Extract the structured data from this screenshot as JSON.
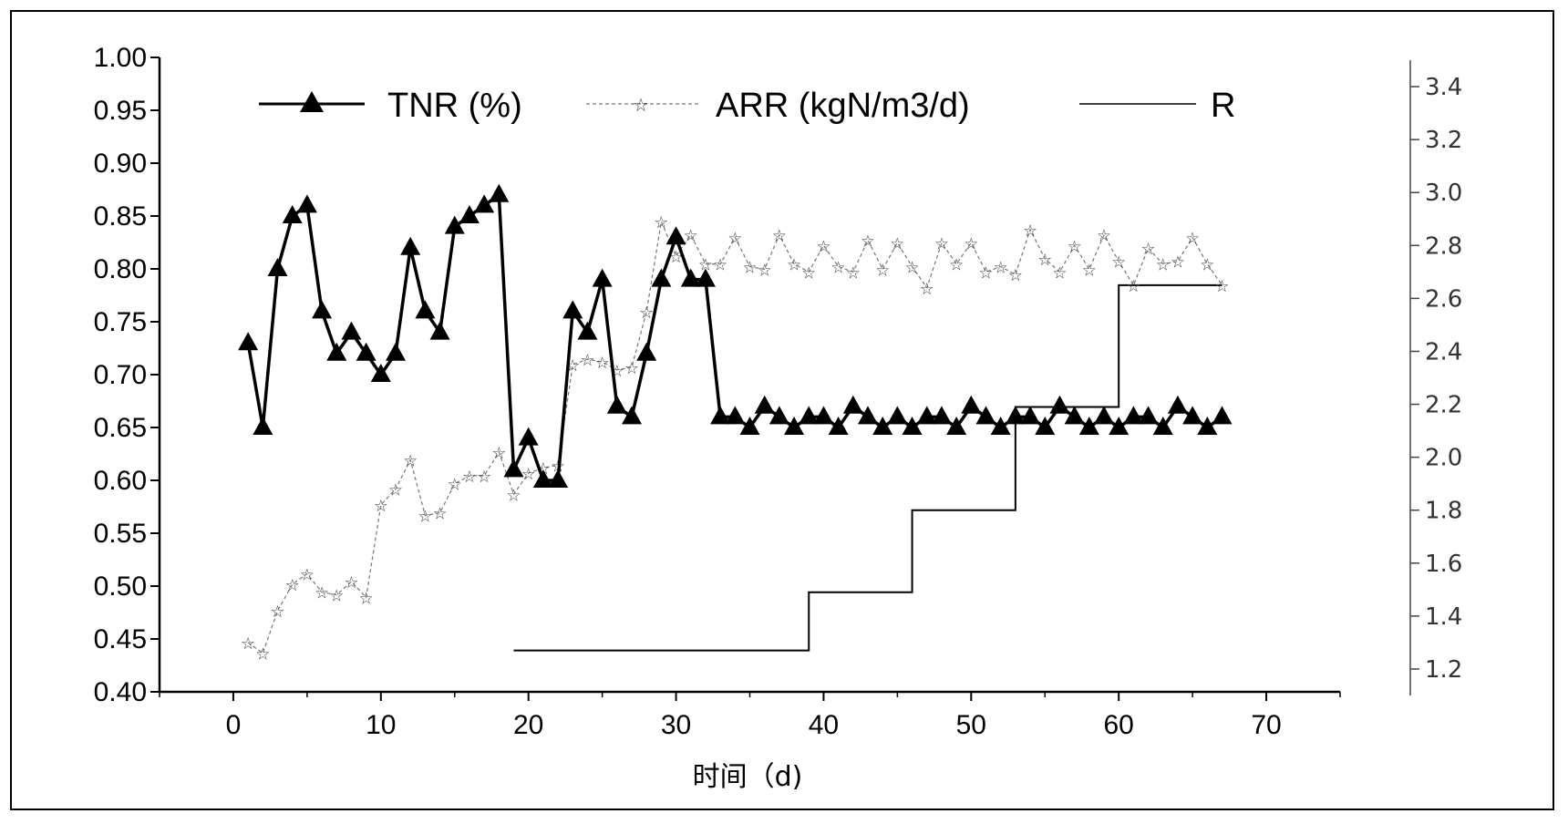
{
  "chart_data": {
    "type": "line",
    "xlabel": "时间（d)",
    "xlim": [
      -5,
      75
    ],
    "xticks": [
      0,
      10,
      20,
      30,
      40,
      50,
      60,
      70
    ],
    "ylim_left": [
      0.4,
      1.0
    ],
    "yticks_left": [
      "0.40",
      "0.45",
      "0.50",
      "0.55",
      "0.60",
      "0.65",
      "0.70",
      "0.75",
      "0.80",
      "0.85",
      "0.90",
      "0.95",
      "1.00"
    ],
    "ylim_right": [
      1.1,
      3.5
    ],
    "yticks_right": [
      "1.2",
      "1.4",
      "1.6",
      "1.8",
      "2.0",
      "2.2",
      "2.4",
      "2.6",
      "2.8",
      "3.0",
      "3.2",
      "3.4"
    ],
    "legend": {
      "placement": "top",
      "entries": [
        "TNR (%)",
        "ARR (kgN/m3/d)",
        "R"
      ]
    },
    "grid": false,
    "series": [
      {
        "name": "TNR (%)",
        "axis": "left",
        "marker": "triangle",
        "color": "#000000",
        "x": [
          1,
          2,
          3,
          4,
          5,
          6,
          7,
          8,
          9,
          10,
          11,
          12,
          13,
          14,
          15,
          16,
          17,
          18,
          19,
          20,
          21,
          22,
          23,
          24,
          25,
          26,
          27,
          28,
          29,
          30,
          31,
          32,
          33,
          34,
          35,
          36,
          37,
          38,
          39,
          40,
          41,
          42,
          43,
          44,
          45,
          46,
          47,
          48,
          49,
          50,
          51,
          52,
          53,
          54,
          55,
          56,
          57,
          58,
          59,
          60,
          61,
          62,
          63,
          64,
          65,
          66,
          67
        ],
        "values": [
          0.73,
          0.65,
          0.8,
          0.85,
          0.86,
          0.76,
          0.72,
          0.74,
          0.72,
          0.7,
          0.72,
          0.82,
          0.76,
          0.74,
          0.84,
          0.85,
          0.86,
          0.87,
          0.61,
          0.64,
          0.6,
          0.6,
          0.76,
          0.74,
          0.79,
          0.67,
          0.66,
          0.72,
          0.79,
          0.83,
          0.79,
          0.79,
          0.66,
          0.66,
          0.65,
          0.67,
          0.66,
          0.65,
          0.66,
          0.66,
          0.65,
          0.67,
          0.66,
          0.65,
          0.66,
          0.65,
          0.66,
          0.66,
          0.65,
          0.67,
          0.66,
          0.65,
          0.66,
          0.66,
          0.65,
          0.67,
          0.66,
          0.65,
          0.66,
          0.65,
          0.66,
          0.66,
          0.65,
          0.67,
          0.66,
          0.65,
          0.66
        ]
      },
      {
        "name": "ARR (kgN/m3/d)",
        "axis": "right",
        "marker": "star",
        "color": "#555555",
        "x": [
          1,
          2,
          3,
          4,
          5,
          6,
          7,
          8,
          9,
          10,
          11,
          12,
          13,
          14,
          15,
          16,
          17,
          18,
          19,
          20,
          21,
          22,
          23,
          24,
          25,
          26,
          27,
          28,
          29,
          30,
          31,
          32,
          33,
          34,
          35,
          36,
          37,
          38,
          39,
          40,
          41,
          42,
          43,
          44,
          45,
          46,
          47,
          48,
          49,
          50,
          51,
          52,
          53,
          54,
          55,
          56,
          57,
          58,
          59,
          60,
          61,
          62,
          63,
          64,
          65,
          66,
          67
        ],
        "values": [
          1.3,
          1.26,
          1.42,
          1.52,
          1.56,
          1.49,
          1.48,
          1.53,
          1.47,
          1.82,
          1.88,
          1.99,
          1.78,
          1.79,
          1.9,
          1.93,
          1.93,
          2.02,
          1.86,
          1.94,
          1.96,
          1.97,
          2.35,
          2.37,
          2.36,
          2.33,
          2.34,
          2.55,
          2.89,
          2.76,
          2.84,
          2.73,
          2.73,
          2.83,
          2.72,
          2.71,
          2.84,
          2.73,
          2.7,
          2.8,
          2.72,
          2.7,
          2.82,
          2.71,
          2.81,
          2.72,
          2.64,
          2.81,
          2.73,
          2.81,
          2.7,
          2.72,
          2.69,
          2.86,
          2.75,
          2.7,
          2.8,
          2.71,
          2.84,
          2.74,
          2.65,
          2.79,
          2.73,
          2.74,
          2.83,
          2.73,
          2.65
        ]
      },
      {
        "name": "R",
        "axis": "right",
        "marker": "none",
        "color": "#000000",
        "step": true,
        "x": [
          19,
          39,
          39,
          46,
          46,
          53,
          53,
          60,
          60,
          67
        ],
        "values": [
          1.27,
          1.27,
          1.49,
          1.49,
          1.8,
          1.8,
          2.19,
          2.19,
          2.65,
          2.65
        ]
      }
    ]
  }
}
